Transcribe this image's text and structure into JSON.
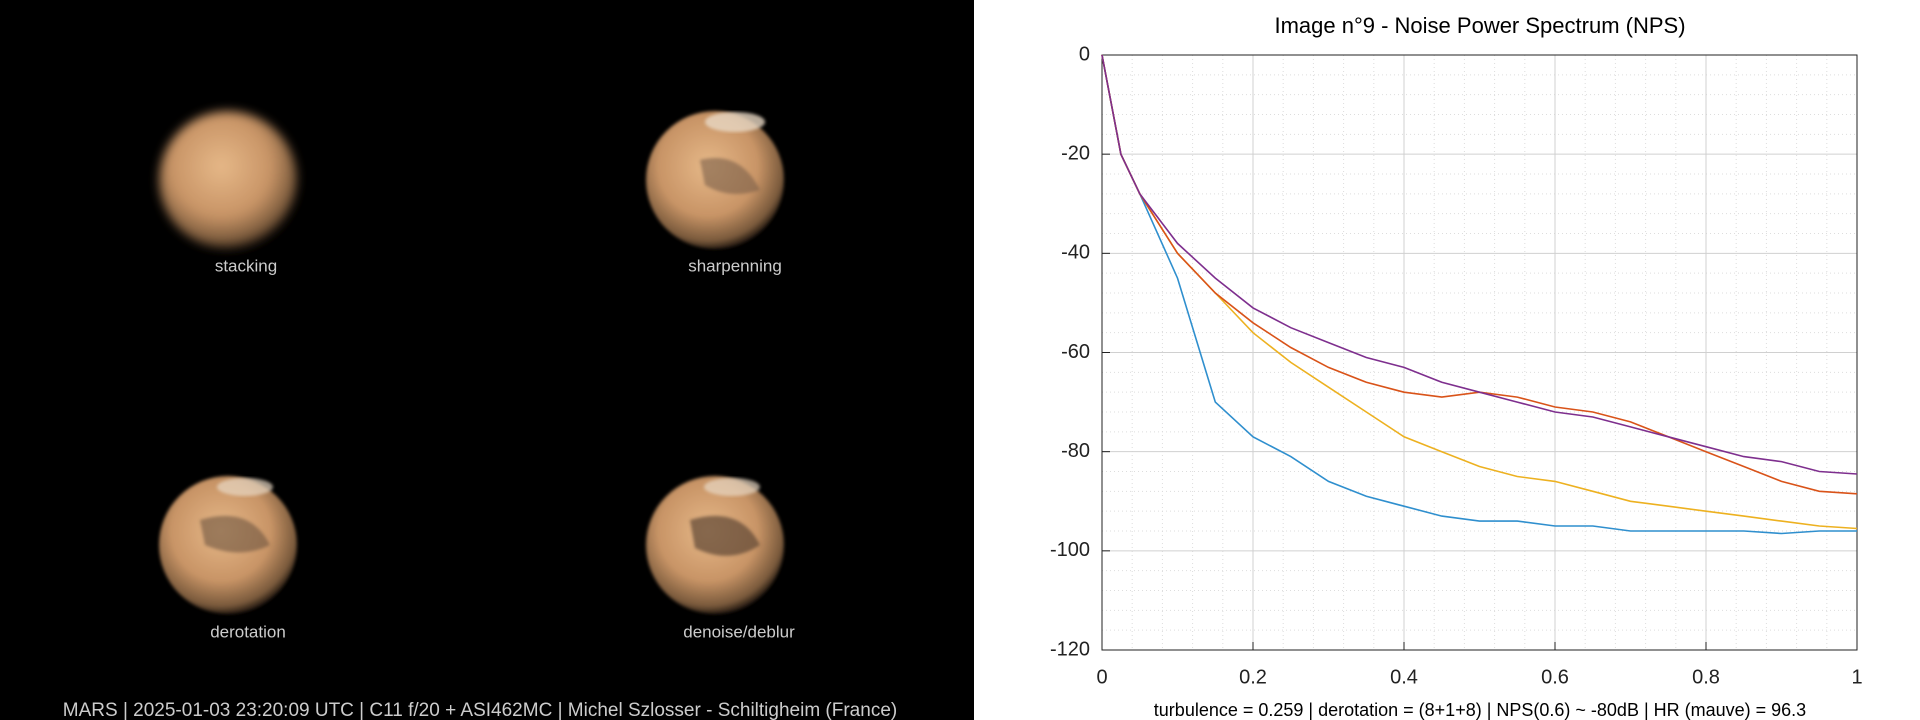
{
  "images": [
    {
      "label": "stacking"
    },
    {
      "label": "sharpenning"
    },
    {
      "label": "derotation"
    },
    {
      "label": "denoise/deblur"
    }
  ],
  "caption": "MARS | 2025-01-03  23:20:09 UTC | C11 f/20 + ASI462MC | Michel Szlosser - Schiltigheim (France)",
  "chart_data": {
    "type": "line",
    "title": "Image n°9 - Noise Power Spectrum (NPS)",
    "annotation": "turbulence = 0.259 | derotation = (8+1+8) | NPS(0.6) ~ -80dB | HR (mauve) = 96.3",
    "x": [
      0,
      0.025,
      0.05,
      0.1,
      0.15,
      0.2,
      0.25,
      0.3,
      0.35,
      0.4,
      0.45,
      0.5,
      0.55,
      0.6,
      0.65,
      0.7,
      0.75,
      0.8,
      0.85,
      0.9,
      0.95,
      1
    ],
    "series": [
      {
        "color": "#2f8fce",
        "values": [
          0,
          -20,
          -28,
          -45,
          -70,
          -77,
          -81,
          -86,
          -89,
          -91,
          -93,
          -94,
          -94,
          -95,
          -95,
          -96,
          -96,
          -96,
          -96,
          -96.5,
          -96,
          -96
        ]
      },
      {
        "color": "#edb120",
        "values": [
          0,
          -20,
          -28,
          -40,
          -48,
          -56,
          -62,
          -67,
          -72,
          -77,
          -80,
          -83,
          -85,
          -86,
          -88,
          -90,
          -91,
          -92,
          -93,
          -94,
          -95,
          -95.5
        ]
      },
      {
        "color": "#d95319",
        "values": [
          0,
          -20,
          -28,
          -40,
          -48,
          -54,
          -59,
          -63,
          -66,
          -68,
          -69,
          -68,
          -69,
          -71,
          -72,
          -74,
          -77,
          -80,
          -83,
          -86,
          -88,
          -88.5
        ]
      },
      {
        "color": "#7e2f8e",
        "values": [
          0,
          -20,
          -28,
          -38,
          -45,
          -51,
          -55,
          -58,
          -61,
          -63,
          -66,
          -68,
          -70,
          -72,
          -73,
          -75,
          -77,
          -79,
          -81,
          -82,
          -84,
          -84.5
        ]
      }
    ],
    "xlim": [
      0,
      1
    ],
    "ylim": [
      -120,
      0
    ],
    "xticks": [
      0,
      0.2,
      0.4,
      0.6,
      0.8,
      1
    ],
    "yticks": [
      -120,
      -100,
      -80,
      -60,
      -40,
      -20,
      0
    ],
    "grid": true,
    "minor_grid": true
  }
}
